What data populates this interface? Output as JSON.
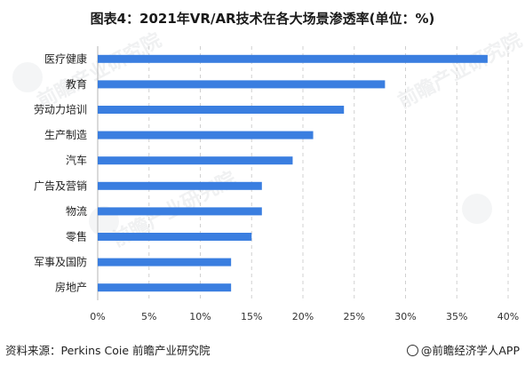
{
  "title": "图表4：2021年VR/AR技术在各大场景渗透率(单位：%)",
  "source": "资料来源：Perkins Coie 前瞻产业研究院",
  "brand": "@前瞻经济学人APP",
  "watermark": "前瞻产业研究院",
  "colors": {
    "bar": "#3a7ee0",
    "grid": "#d0d0d0",
    "axis": "#b5b5b5"
  },
  "chart_data": {
    "type": "bar",
    "orientation": "horizontal",
    "categories": [
      "医疗健康",
      "教育",
      "劳动力培训",
      "生产制造",
      "汽车",
      "广告及营销",
      "物流",
      "零售",
      "军事及国防",
      "房地产"
    ],
    "values": [
      38,
      28,
      24,
      21,
      19,
      16,
      16,
      15,
      13,
      13
    ],
    "xlim": [
      0,
      40
    ],
    "x_ticks": [
      "0%",
      "5%",
      "10%",
      "15%",
      "20%",
      "25%",
      "30%",
      "35%",
      "40%"
    ],
    "grid": "vertical dashed"
  }
}
